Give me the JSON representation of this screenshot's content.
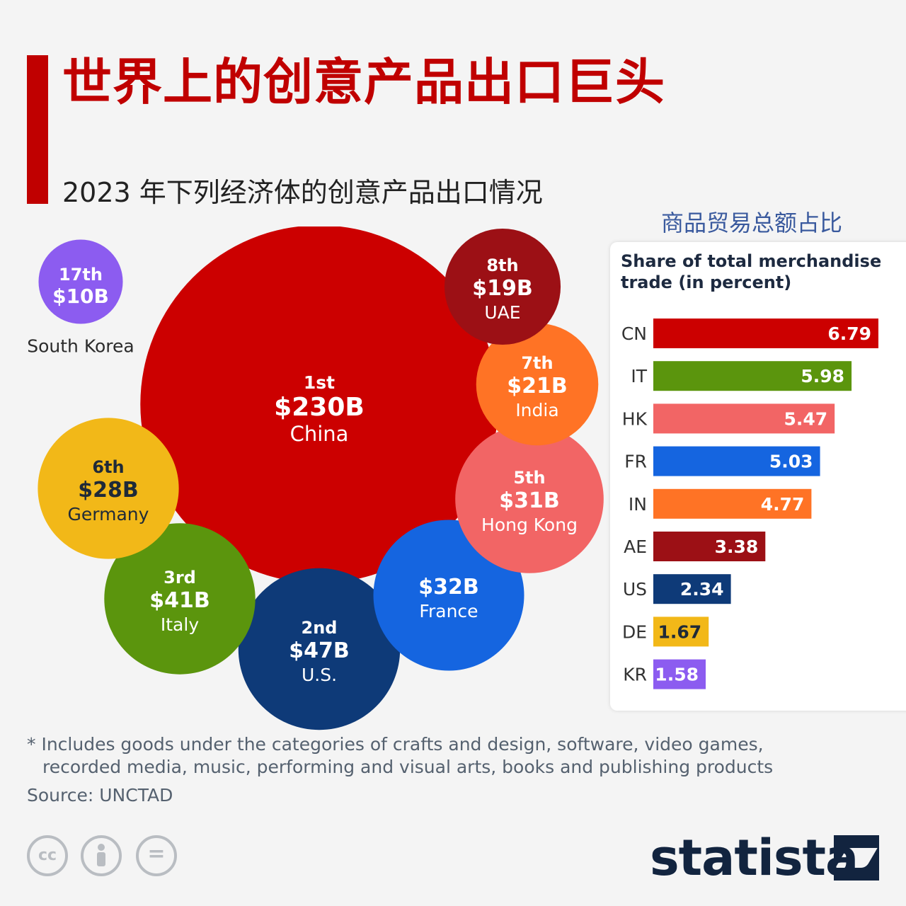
{
  "title": "世界上的创意产品出口巨头",
  "subtitle": "2023 年下列经济体的创意产品出口情况",
  "share_heading_cn": "商品贸易总额占比",
  "footnote_line1": "* Includes goods under the categories of crafts and design, software, video games,",
  "footnote_line2": "recorded media, music, performing and visual arts, books and publishing products",
  "source": "Source: UNCTAD",
  "brand": "statista",
  "license_icons": [
    "cc-icon",
    "by-icon",
    "nd-icon"
  ],
  "colors": {
    "accent": "#c00000",
    "china": "#cc0000",
    "us": "#0e3a78",
    "italy": "#5b950d",
    "france": "#1565e0",
    "hong_kong": "#f26565",
    "germany": "#f2b818",
    "india": "#ff7325",
    "uae": "#9c1015",
    "south_korea": "#8c5cf0"
  },
  "chart_data": [
    {
      "type": "bubble",
      "title": "2023 年下列经济体的创意产品出口情况",
      "unit": "USD billions",
      "points": [
        {
          "rank": "1st",
          "label": "$230B",
          "value": 230,
          "country": "China",
          "color": "#cc0000",
          "text_color": "#ffffff"
        },
        {
          "rank": "2nd",
          "label": "$47B",
          "value": 47,
          "country": "U.S.",
          "color": "#0e3a78",
          "text_color": "#ffffff"
        },
        {
          "rank": "3rd",
          "label": "$41B",
          "value": 41,
          "country": "Italy",
          "color": "#5b950d",
          "text_color": "#ffffff"
        },
        {
          "rank": "",
          "label": "$32B",
          "value": 32,
          "country": "France",
          "color": "#1565e0",
          "text_color": "#ffffff"
        },
        {
          "rank": "5th",
          "label": "$31B",
          "value": 31,
          "country": "Hong Kong",
          "color": "#f26565",
          "text_color": "#ffffff"
        },
        {
          "rank": "6th",
          "label": "$28B",
          "value": 28,
          "country": "Germany",
          "color": "#f2b818",
          "text_color": "#1f2a38"
        },
        {
          "rank": "7th",
          "label": "$21B",
          "value": 21,
          "country": "India",
          "color": "#ff7325",
          "text_color": "#ffffff"
        },
        {
          "rank": "8th",
          "label": "$19B",
          "value": 19,
          "country": "UAE",
          "color": "#9c1015",
          "text_color": "#ffffff"
        },
        {
          "rank": "17th",
          "label": "$10B",
          "value": 10,
          "country": "South Korea",
          "color": "#8c5cf0",
          "text_color": "#ffffff"
        }
      ]
    },
    {
      "type": "bar",
      "orientation": "horizontal",
      "title": "Share of total merchandise trade (in percent)",
      "categories": [
        "CN",
        "IT",
        "HK",
        "FR",
        "IN",
        "AE",
        "US",
        "DE",
        "KR"
      ],
      "values": [
        6.79,
        5.98,
        5.47,
        5.03,
        4.77,
        3.38,
        2.34,
        1.67,
        1.58
      ],
      "value_labels": [
        "6.79",
        "5.98",
        "5.47",
        "5.03",
        "4.77",
        "3.38",
        "2.34",
        "1.67",
        "1.58"
      ],
      "colors": [
        "#cc0000",
        "#5b950d",
        "#f26565",
        "#1565e0",
        "#ff7325",
        "#9c1015",
        "#0e3a78",
        "#f2b818",
        "#8c5cf0"
      ],
      "label_colors": [
        "#ffffff",
        "#ffffff",
        "#ffffff",
        "#ffffff",
        "#ffffff",
        "#ffffff",
        "#ffffff",
        "#1f2a38",
        "#ffffff"
      ],
      "xlim": [
        0,
        6.79
      ]
    }
  ]
}
